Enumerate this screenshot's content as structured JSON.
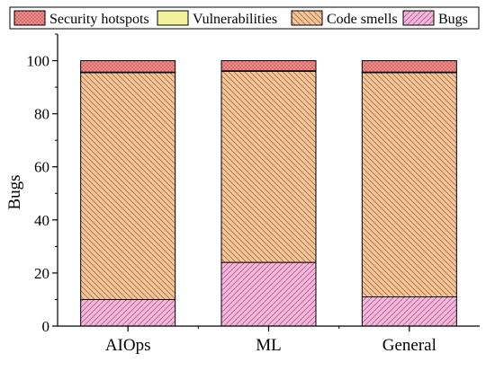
{
  "chart_data": {
    "type": "bar",
    "stacked": true,
    "categories": [
      "AIOps",
      "ML",
      "General"
    ],
    "series": [
      {
        "name": "Bugs",
        "values": [
          10,
          24,
          11
        ],
        "color": "#f4b8dc",
        "pattern": "diag-up"
      },
      {
        "name": "Code smells",
        "values": [
          85.5,
          72,
          84.5
        ],
        "color": "#f6c496",
        "pattern": "diag-down"
      },
      {
        "name": "Vulnerabilities",
        "values": [
          0.2,
          0.2,
          0.2
        ],
        "color": "#f2f29a",
        "pattern": "none"
      },
      {
        "name": "Security hotspots",
        "values": [
          4.3,
          3.8,
          4.3
        ],
        "color": "#f28a8a",
        "pattern": "dots"
      }
    ],
    "legend_order": [
      "Security hotspots",
      "Vulnerabilities",
      "Code smells",
      "Bugs"
    ],
    "legend_position": "top",
    "ylabel": "Bugs",
    "xlabel": "",
    "ylim": [
      0,
      110
    ],
    "yticks": [
      0,
      20,
      40,
      60,
      80,
      100
    ],
    "grid": false
  }
}
